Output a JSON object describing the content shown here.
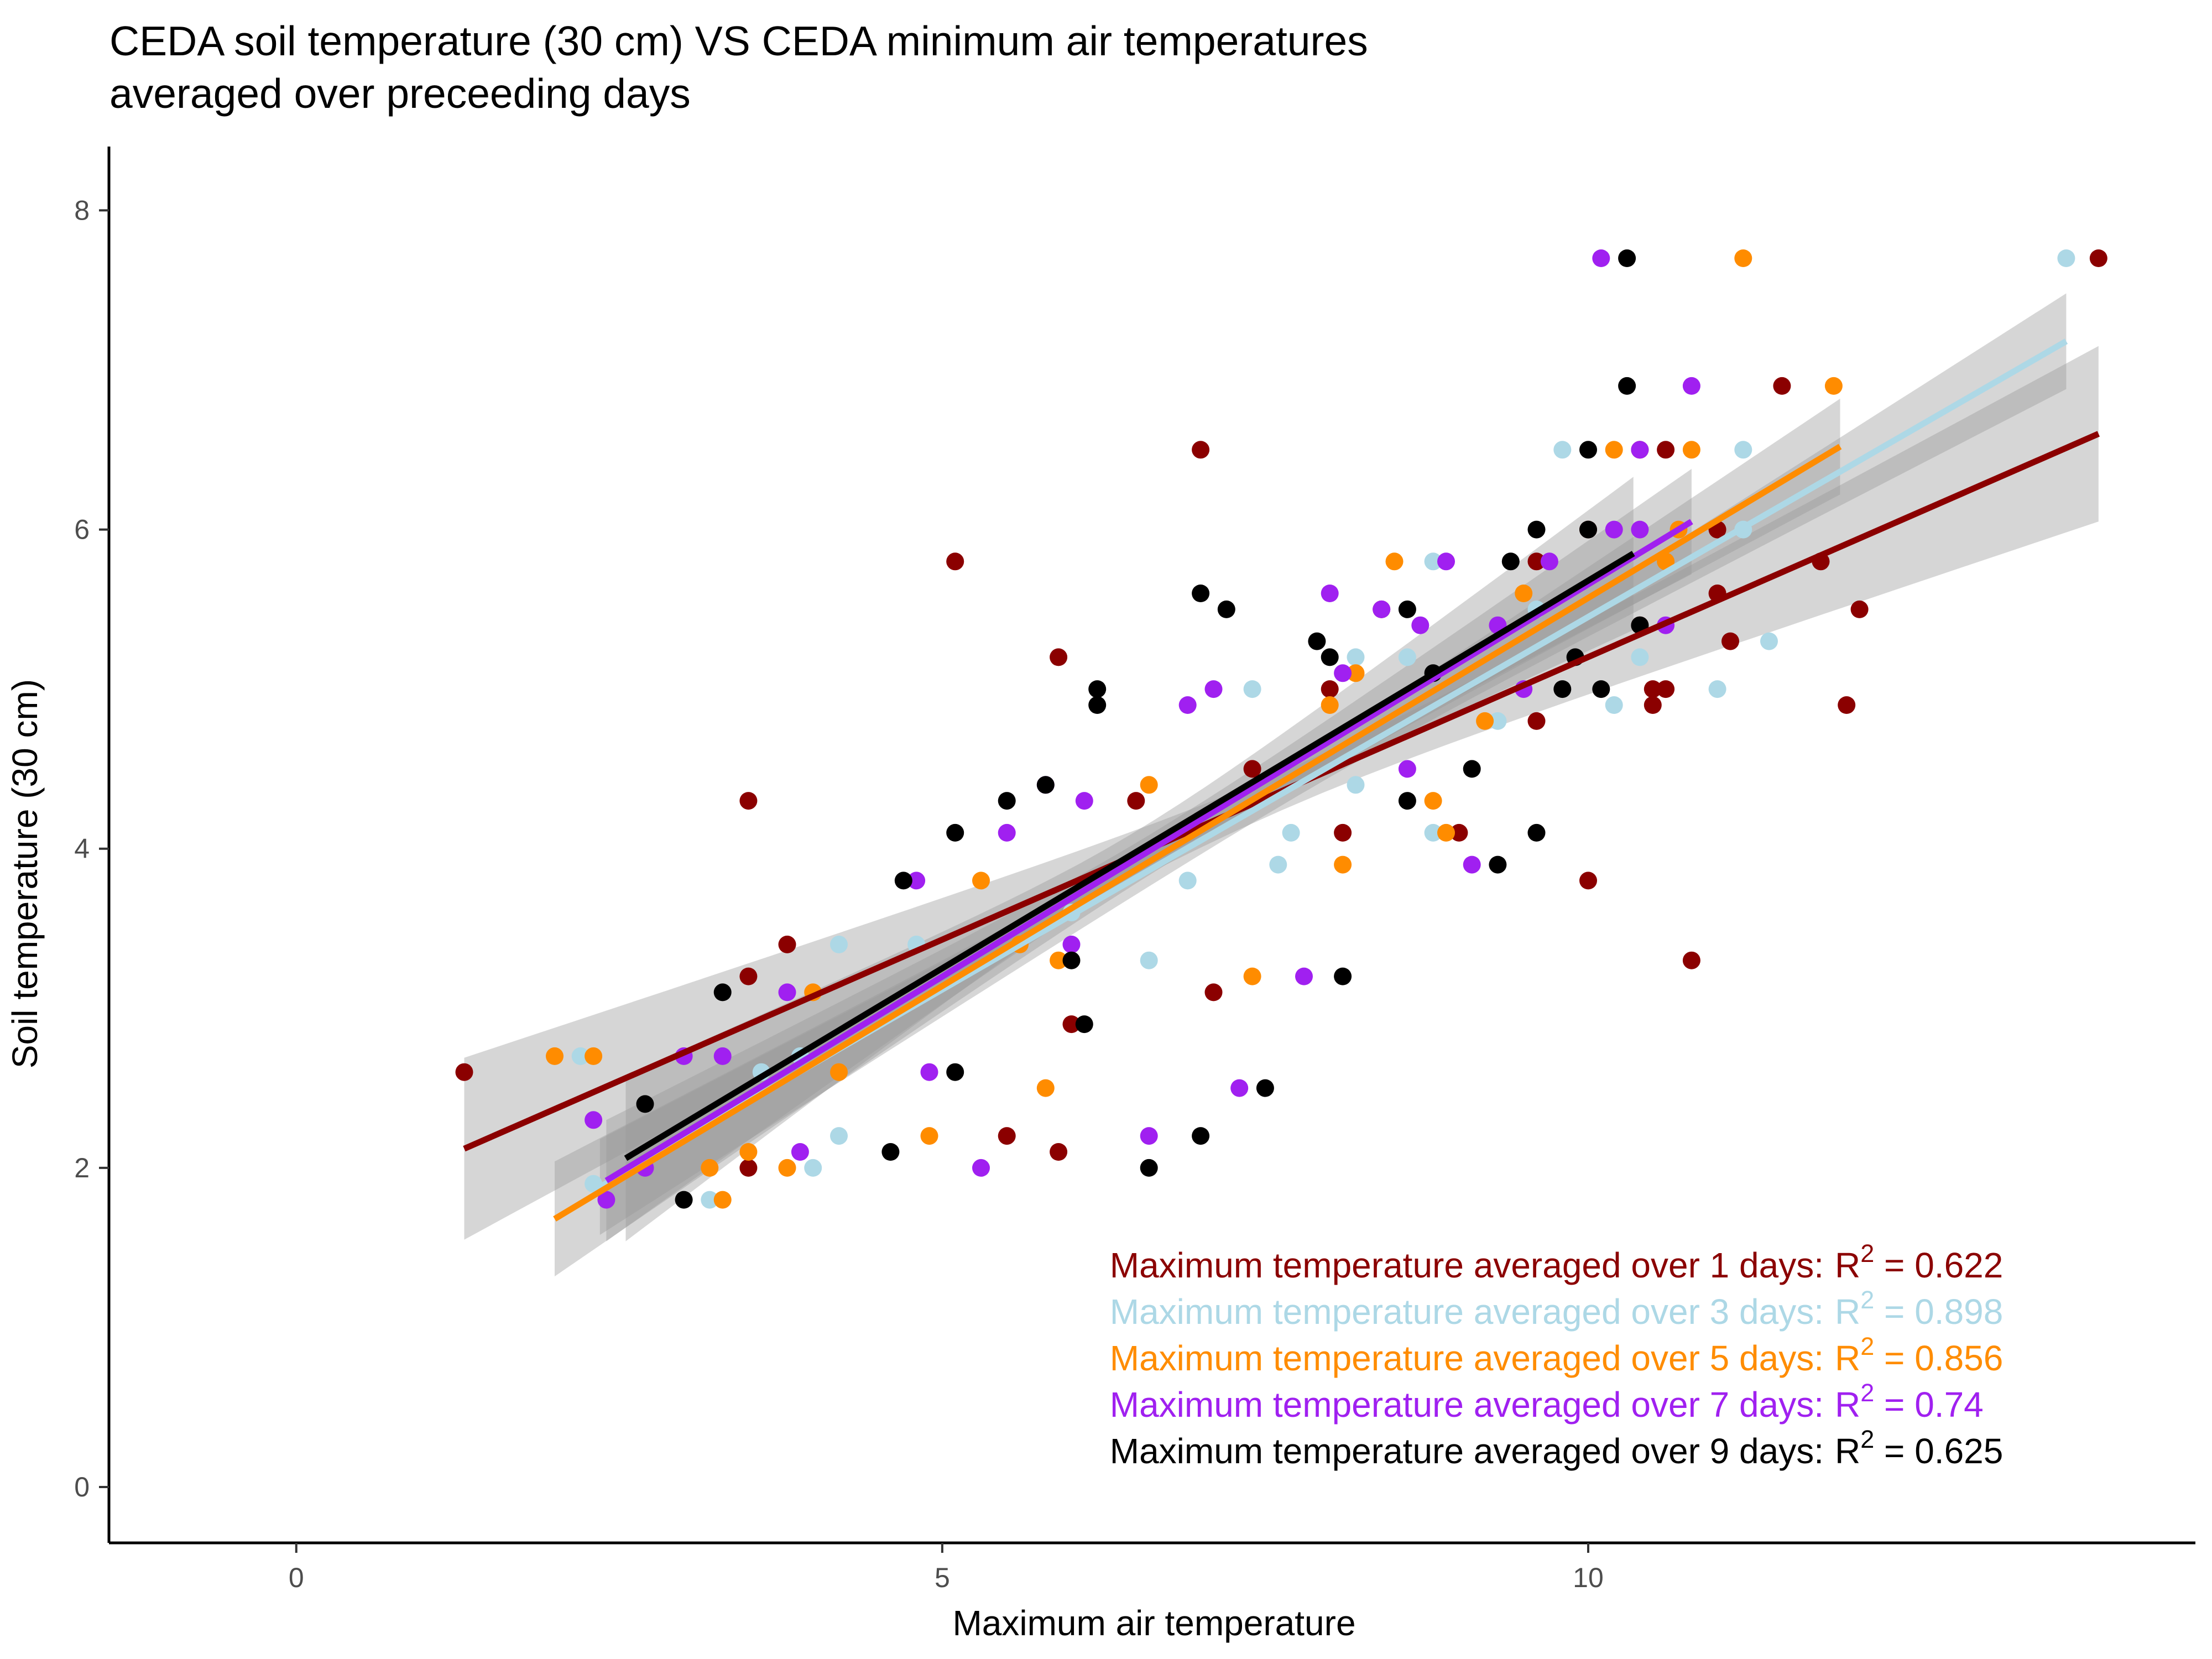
{
  "chart_data": {
    "type": "scatter",
    "title": [
      "CEDA soil temperature (30 cm) VS CEDA minimum air temperatures",
      "averaged over preceeding days"
    ],
    "xlabel": "Maximum air temperature",
    "ylabel": "Soil temperature (30 cm)",
    "xlim": [
      -1.45,
      14.7
    ],
    "ylim": [
      -0.35,
      8.4
    ],
    "x_ticks": [
      0,
      5,
      10
    ],
    "y_ticks": [
      0,
      2,
      4,
      6,
      8
    ],
    "x_tick_labels": [
      "0",
      "5",
      "10"
    ],
    "y_tick_labels": [
      "0",
      "2",
      "4",
      "6",
      "8"
    ],
    "grid": false,
    "series": [
      {
        "label": "Maximum temperature averaged over 1 days:",
        "r2": "0.622",
        "color": "#8B0000",
        "fit": {
          "x": [
            1.3,
            13.95
          ],
          "y": [
            2.12,
            6.6
          ],
          "band_halfwidth_ends": [
            0.57,
            0.55
          ],
          "band_halfwidth_mid": 0.12
        },
        "points": [
          [
            1.3,
            2.6
          ],
          [
            3.5,
            4.3
          ],
          [
            3.5,
            3.2
          ],
          [
            3.5,
            2.0
          ],
          [
            3.8,
            3.4
          ],
          [
            5.1,
            5.8
          ],
          [
            5.5,
            2.2
          ],
          [
            5.9,
            5.2
          ],
          [
            5.9,
            2.1
          ],
          [
            6.0,
            2.9
          ],
          [
            6.5,
            4.3
          ],
          [
            7.0,
            6.5
          ],
          [
            7.1,
            3.1
          ],
          [
            7.4,
            4.5
          ],
          [
            8.0,
            5.0
          ],
          [
            8.1,
            4.1
          ],
          [
            8.4,
            5.5
          ],
          [
            9.0,
            4.1
          ],
          [
            9.6,
            5.8
          ],
          [
            9.6,
            4.8
          ],
          [
            10.0,
            6.0
          ],
          [
            10.0,
            3.8
          ],
          [
            10.4,
            5.4
          ],
          [
            10.4,
            6.5
          ],
          [
            10.5,
            5.0
          ],
          [
            10.5,
            4.9
          ],
          [
            10.6,
            5.0
          ],
          [
            10.6,
            6.5
          ],
          [
            10.8,
            3.3
          ],
          [
            11.0,
            6.0
          ],
          [
            11.0,
            5.6
          ],
          [
            11.1,
            5.3
          ],
          [
            11.5,
            6.9
          ],
          [
            11.8,
            5.8
          ],
          [
            12.0,
            4.9
          ],
          [
            12.1,
            5.5
          ],
          [
            13.95,
            7.7
          ]
        ]
      },
      {
        "label": "Maximum temperature averaged over 3 days:",
        "r2": "0.898",
        "color": "#ADD8E6",
        "fit": {
          "x": [
            2.35,
            13.7
          ],
          "y": [
            1.88,
            7.18
          ],
          "band_halfwidth_ends": [
            0.3,
            0.3
          ],
          "band_halfwidth_mid": 0.07
        },
        "points": [
          [
            2.2,
            2.7
          ],
          [
            2.3,
            1.9
          ],
          [
            3.2,
            1.8
          ],
          [
            3.6,
            2.6
          ],
          [
            3.9,
            2.7
          ],
          [
            4.0,
            2.0
          ],
          [
            4.2,
            2.2
          ],
          [
            4.2,
            3.4
          ],
          [
            4.8,
            3.4
          ],
          [
            6.0,
            3.6
          ],
          [
            6.6,
            3.3
          ],
          [
            6.9,
            3.8
          ],
          [
            7.4,
            5.0
          ],
          [
            7.6,
            3.9
          ],
          [
            7.7,
            4.1
          ],
          [
            8.2,
            4.4
          ],
          [
            8.2,
            5.2
          ],
          [
            8.6,
            5.2
          ],
          [
            8.8,
            4.1
          ],
          [
            8.8,
            5.8
          ],
          [
            9.3,
            4.8
          ],
          [
            9.6,
            5.5
          ],
          [
            9.8,
            6.5
          ],
          [
            10.2,
            4.9
          ],
          [
            10.4,
            5.2
          ],
          [
            11.0,
            5.0
          ],
          [
            11.2,
            6.5
          ],
          [
            11.2,
            6.0
          ],
          [
            11.4,
            5.3
          ],
          [
            13.7,
            7.7
          ]
        ]
      },
      {
        "label": "Maximum temperature averaged over 5 days:",
        "r2": "0.856",
        "color": "#FF8C00",
        "fit": {
          "x": [
            2.0,
            11.95
          ],
          "y": [
            1.68,
            6.52
          ],
          "band_halfwidth_ends": [
            0.36,
            0.3
          ],
          "band_halfwidth_mid": 0.08
        },
        "points": [
          [
            2.0,
            2.7
          ],
          [
            2.3,
            2.7
          ],
          [
            3.2,
            2.0
          ],
          [
            3.3,
            1.8
          ],
          [
            3.5,
            2.1
          ],
          [
            3.8,
            2.0
          ],
          [
            4.0,
            3.1
          ],
          [
            4.2,
            2.6
          ],
          [
            4.9,
            2.2
          ],
          [
            5.3,
            3.8
          ],
          [
            5.6,
            3.4
          ],
          [
            5.8,
            2.5
          ],
          [
            5.9,
            3.3
          ],
          [
            6.6,
            4.4
          ],
          [
            7.4,
            3.2
          ],
          [
            8.0,
            4.9
          ],
          [
            8.1,
            3.9
          ],
          [
            8.2,
            5.1
          ],
          [
            8.5,
            5.8
          ],
          [
            8.8,
            4.3
          ],
          [
            8.9,
            4.1
          ],
          [
            9.2,
            4.8
          ],
          [
            9.5,
            5.6
          ],
          [
            10.2,
            6.5
          ],
          [
            10.6,
            5.8
          ],
          [
            10.7,
            6.0
          ],
          [
            10.8,
            6.5
          ],
          [
            11.2,
            7.7
          ],
          [
            11.9,
            6.9
          ]
        ]
      },
      {
        "label": "Maximum temperature averaged over 7 days:",
        "r2": "0.74",
        "color": "#A020F0",
        "fit": {
          "x": [
            2.4,
            10.8
          ],
          "y": [
            1.92,
            6.05
          ],
          "band_halfwidth_ends": [
            0.38,
            0.33
          ],
          "band_halfwidth_mid": 0.1
        },
        "points": [
          [
            2.3,
            2.3
          ],
          [
            2.4,
            1.8
          ],
          [
            2.7,
            2.0
          ],
          [
            3.0,
            2.7
          ],
          [
            3.3,
            2.7
          ],
          [
            3.8,
            3.1
          ],
          [
            3.9,
            2.1
          ],
          [
            4.8,
            3.8
          ],
          [
            4.9,
            2.6
          ],
          [
            5.3,
            2.0
          ],
          [
            5.5,
            4.1
          ],
          [
            5.8,
            4.4
          ],
          [
            6.0,
            3.4
          ],
          [
            6.1,
            4.3
          ],
          [
            6.6,
            2.2
          ],
          [
            6.9,
            4.9
          ],
          [
            7.1,
            5.0
          ],
          [
            7.3,
            2.5
          ],
          [
            7.8,
            3.2
          ],
          [
            8.0,
            5.6
          ],
          [
            8.1,
            5.1
          ],
          [
            8.4,
            5.5
          ],
          [
            8.6,
            4.5
          ],
          [
            8.7,
            5.4
          ],
          [
            8.9,
            5.8
          ],
          [
            9.1,
            3.9
          ],
          [
            9.3,
            5.4
          ],
          [
            9.5,
            5.0
          ],
          [
            9.7,
            5.8
          ],
          [
            10.1,
            7.7
          ],
          [
            10.2,
            6.0
          ],
          [
            10.4,
            6.0
          ],
          [
            10.4,
            6.5
          ],
          [
            10.6,
            5.4
          ],
          [
            10.8,
            6.9
          ]
        ]
      },
      {
        "label": "Maximum temperature averaged over 9 days:",
        "r2": "0.625",
        "color": "#000000",
        "fit": {
          "x": [
            2.55,
            10.35
          ],
          "y": [
            2.06,
            5.85
          ],
          "band_halfwidth_ends": [
            0.52,
            0.48
          ],
          "band_halfwidth_mid": 0.13
        },
        "points": [
          [
            2.7,
            2.4
          ],
          [
            3.0,
            1.8
          ],
          [
            3.3,
            3.1
          ],
          [
            4.7,
            3.8
          ],
          [
            4.6,
            2.1
          ],
          [
            5.1,
            4.1
          ],
          [
            5.1,
            2.6
          ],
          [
            5.5,
            4.3
          ],
          [
            5.8,
            4.4
          ],
          [
            6.0,
            3.3
          ],
          [
            6.1,
            2.9
          ],
          [
            6.2,
            4.9
          ],
          [
            6.2,
            5.0
          ],
          [
            6.6,
            2.0
          ],
          [
            7.0,
            5.6
          ],
          [
            7.0,
            2.2
          ],
          [
            7.2,
            5.5
          ],
          [
            7.5,
            2.5
          ],
          [
            7.9,
            5.3
          ],
          [
            8.0,
            5.2
          ],
          [
            8.1,
            3.2
          ],
          [
            8.6,
            4.3
          ],
          [
            8.6,
            5.5
          ],
          [
            8.8,
            5.1
          ],
          [
            9.1,
            4.5
          ],
          [
            9.3,
            3.9
          ],
          [
            9.4,
            5.8
          ],
          [
            9.6,
            6.0
          ],
          [
            9.6,
            4.1
          ],
          [
            9.8,
            5.0
          ],
          [
            9.9,
            5.2
          ],
          [
            10.0,
            6.0
          ],
          [
            10.0,
            6.5
          ],
          [
            10.1,
            5.0
          ],
          [
            10.3,
            7.7
          ],
          [
            10.3,
            6.9
          ],
          [
            10.4,
            5.4
          ]
        ]
      }
    ]
  }
}
